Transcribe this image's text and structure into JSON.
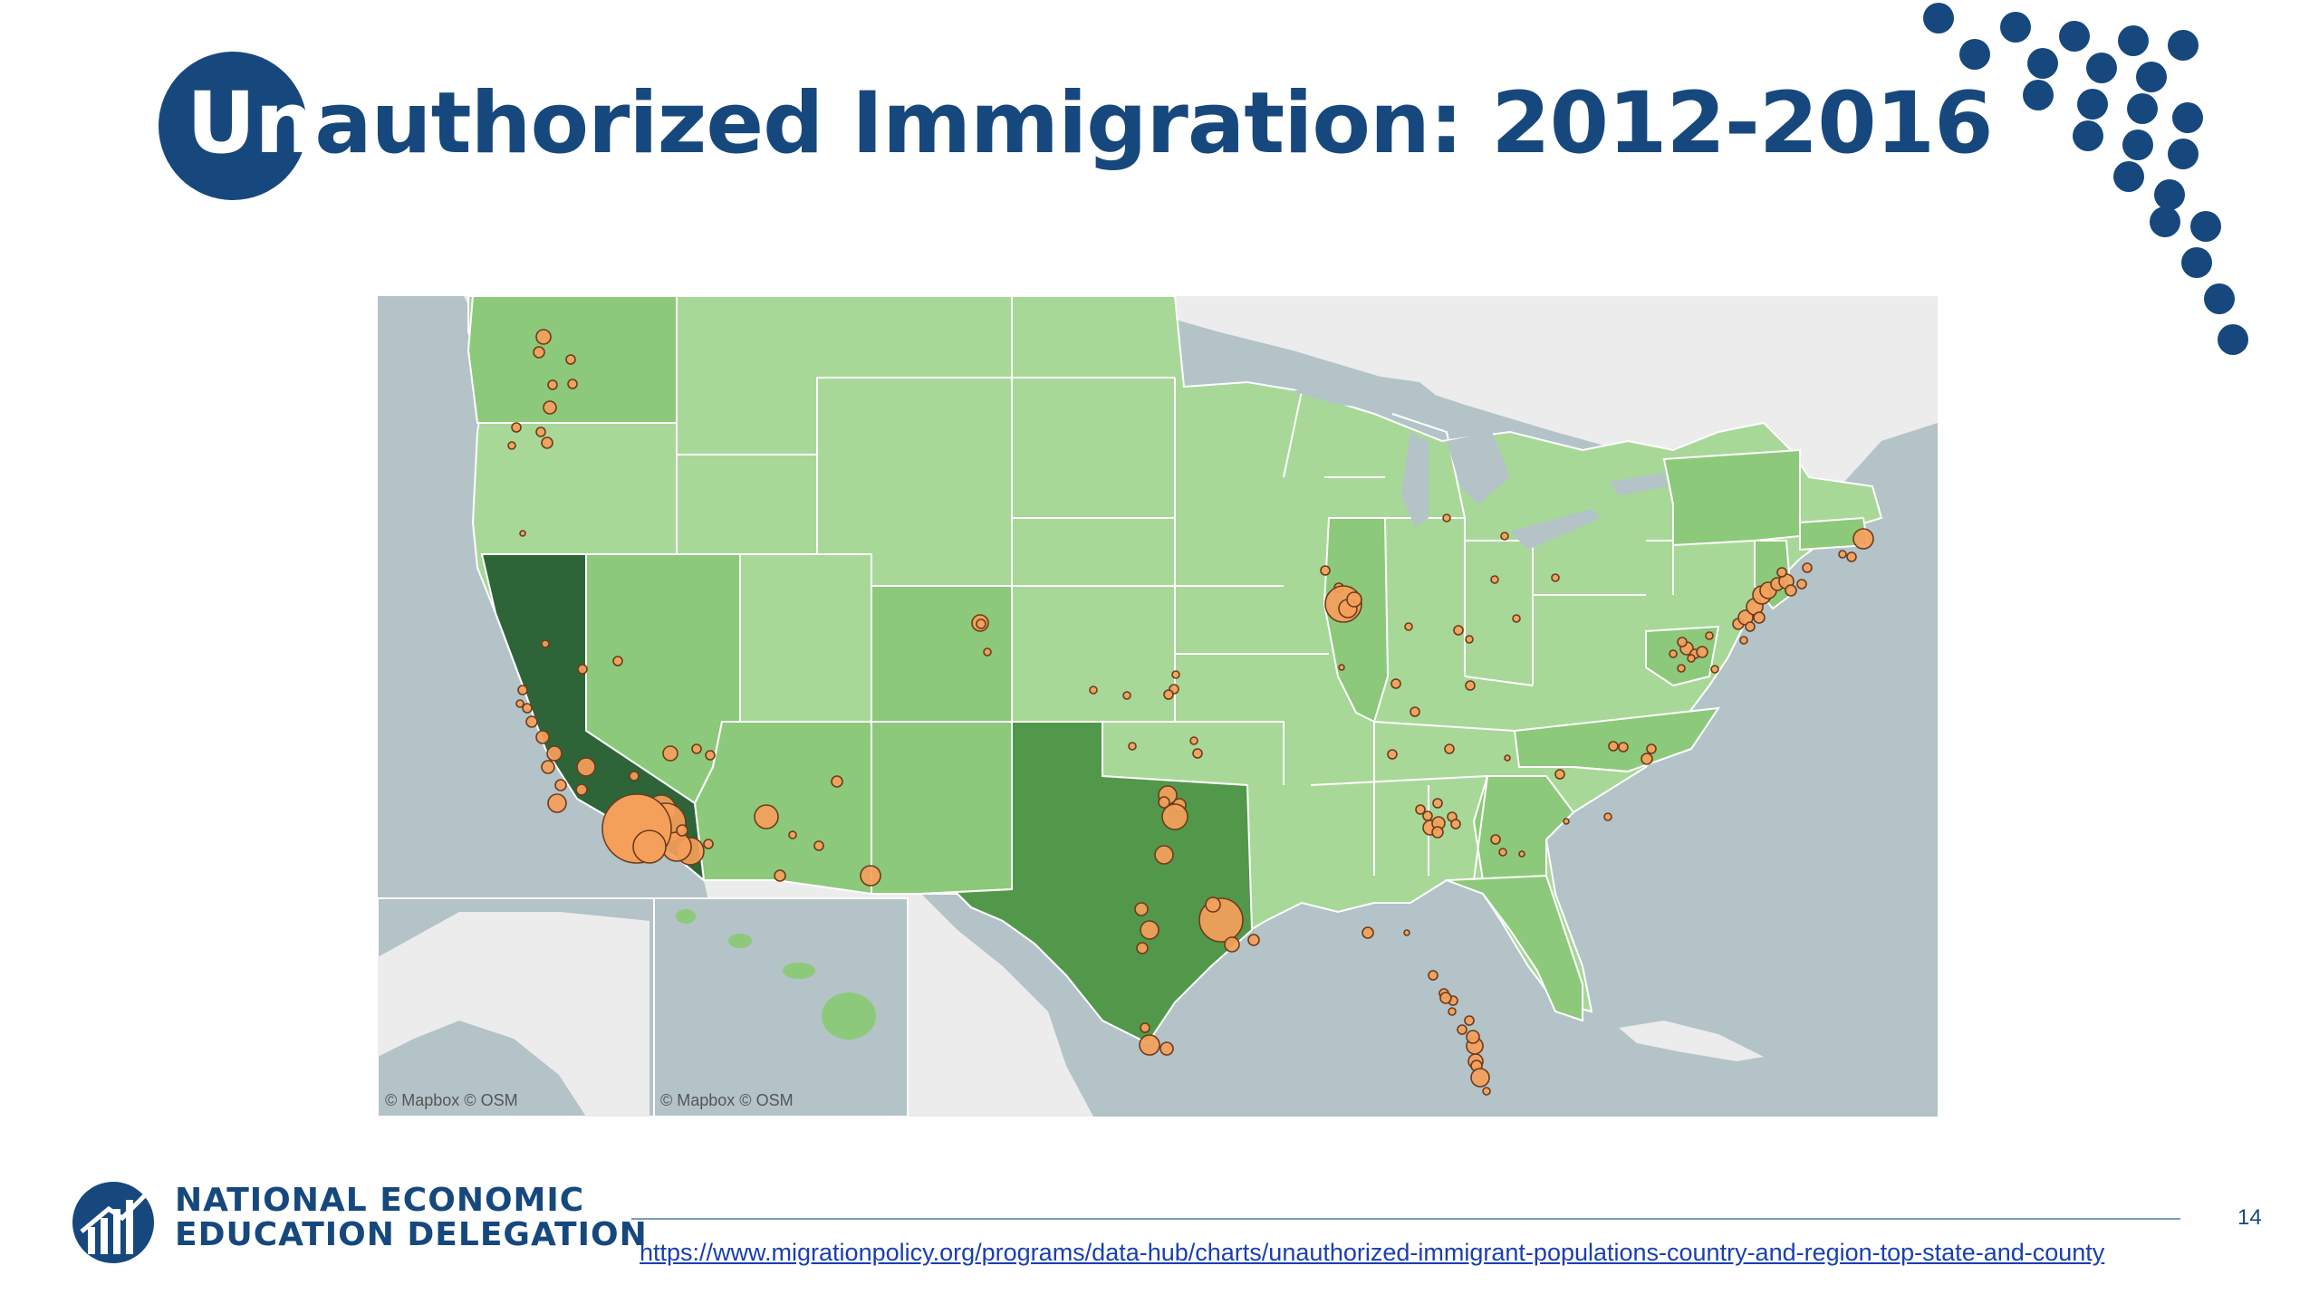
{
  "slide": {
    "title_highlight": "Un",
    "title_rest": "authorized Immigration: 2012-2016",
    "page_number": "14",
    "source_url": "https://www.migrationpolicy.org/programs/data-hub/charts/unauthorized-immigrant-populations-country-and-region-top-state-and-county"
  },
  "logo": {
    "line1": "NATIONAL ECONOMIC",
    "line2": "EDUCATION DELEGATION"
  },
  "map": {
    "attribution": "© Mapbox  © OSM",
    "inset_alaska_attribution": "© Mapbox  © OSM",
    "inset_hawaii_attribution": "© Mapbox  © OSM",
    "colors": {
      "ocean": "#b3c3c8",
      "land_foreign": "#ececec",
      "state_light": "#a8d898",
      "state_mid": "#8cc97a",
      "state_dark": "#52984a",
      "state_darkest": "#2d6539",
      "bubble": "#f5a05a",
      "bubble_stroke": "#6b3b1e"
    }
  }
}
